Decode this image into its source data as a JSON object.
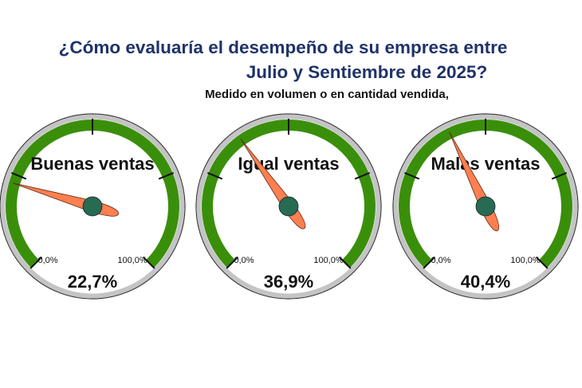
{
  "title_line1": "¿Cómo evaluaría el desempeño de su empresa entre",
  "title_line2": "Julio y Sentiembre de 2025?",
  "subtitle": "Medido en volumen o en cantidad vendida,",
  "colors": {
    "title": "#1f3369",
    "band": "#3a8f0a",
    "ring": "#c4c4c6",
    "needle": "#ff7f50",
    "hub": "#276b52"
  },
  "chart_data": {
    "type": "gauge",
    "min_label": "0,0%",
    "max_label": "100,0%",
    "range": [
      0,
      100
    ],
    "ticks": [
      0,
      25,
      50,
      75,
      100
    ],
    "gauges": [
      {
        "label": "Buenas ventas",
        "value": 22.7,
        "value_label": "22,7%"
      },
      {
        "label": "Igual ventas",
        "value": 36.9,
        "value_label": "36,9%"
      },
      {
        "label": "Malas ventas",
        "value": 40.4,
        "value_label": "40,4%"
      }
    ]
  }
}
